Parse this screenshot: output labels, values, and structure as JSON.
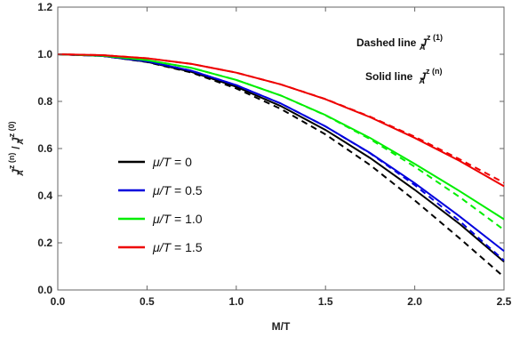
{
  "chart_data": {
    "type": "line",
    "title": "",
    "xlabel": "M/T",
    "ylabel_parts": {
      "main": "J",
      "sup1": "z (n)",
      "sub1": "A",
      "slash": " / ",
      "main2": "J",
      "sup2": "z (0)",
      "sub2": "A"
    },
    "xlim": [
      0,
      2.5
    ],
    "ylim": [
      0,
      1.2
    ],
    "xticks": [
      0.0,
      0.5,
      1.0,
      1.5,
      2.0,
      2.5
    ],
    "yticks": [
      0.0,
      0.2,
      0.4,
      0.6,
      0.8,
      1.0,
      1.2
    ],
    "xtick_labels": [
      "0.0",
      "0.5",
      "1.0",
      "1.5",
      "2.0",
      "2.5"
    ],
    "ytick_labels": [
      "0.0",
      "0.2",
      "0.4",
      "0.6",
      "0.8",
      "1.0",
      "1.2"
    ],
    "grid": false,
    "legend_position": "lower-left",
    "annotations": {
      "dashed": {
        "text": "Dashed line",
        "main": "J",
        "sup": "z (1)",
        "sub": "A"
      },
      "solid": {
        "text": "Solid line",
        "main": "J",
        "sup": "z (n)",
        "sub": "A"
      }
    },
    "x": [
      0,
      0.25,
      0.5,
      0.75,
      1.0,
      1.25,
      1.5,
      1.75,
      2.0,
      2.25,
      2.5
    ],
    "series": [
      {
        "name": "μ/T = 0",
        "color": "#000000",
        "solid": [
          1.0,
          0.993,
          0.968,
          0.925,
          0.862,
          0.78,
          0.679,
          0.56,
          0.425,
          0.281,
          0.12
        ],
        "dashed": [
          1.0,
          0.993,
          0.967,
          0.922,
          0.855,
          0.768,
          0.66,
          0.53,
          0.38,
          0.22,
          0.055
        ]
      },
      {
        "name": "μ/T = 0.5",
        "color": "#0000dd",
        "solid": [
          1.0,
          0.993,
          0.97,
          0.93,
          0.869,
          0.791,
          0.694,
          0.581,
          0.453,
          0.313,
          0.165
        ],
        "dashed": [
          1.0,
          0.993,
          0.97,
          0.93,
          0.869,
          0.791,
          0.694,
          0.58,
          0.445,
          0.293,
          0.125
        ]
      },
      {
        "name": "μ/T = 1.0",
        "color": "#00ee00",
        "solid": [
          1.0,
          0.994,
          0.975,
          0.942,
          0.891,
          0.825,
          0.742,
          0.645,
          0.535,
          0.42,
          0.3
        ],
        "dashed": [
          1.0,
          0.994,
          0.975,
          0.942,
          0.891,
          0.825,
          0.741,
          0.64,
          0.523,
          0.395,
          0.255
        ]
      },
      {
        "name": "μ/T = 1.5",
        "color": "#ee0000",
        "solid": [
          1.0,
          0.996,
          0.983,
          0.959,
          0.922,
          0.872,
          0.809,
          0.733,
          0.645,
          0.548,
          0.44
        ],
        "dashed": [
          1.0,
          0.996,
          0.983,
          0.959,
          0.922,
          0.872,
          0.81,
          0.735,
          0.65,
          0.555,
          0.455
        ]
      }
    ]
  }
}
